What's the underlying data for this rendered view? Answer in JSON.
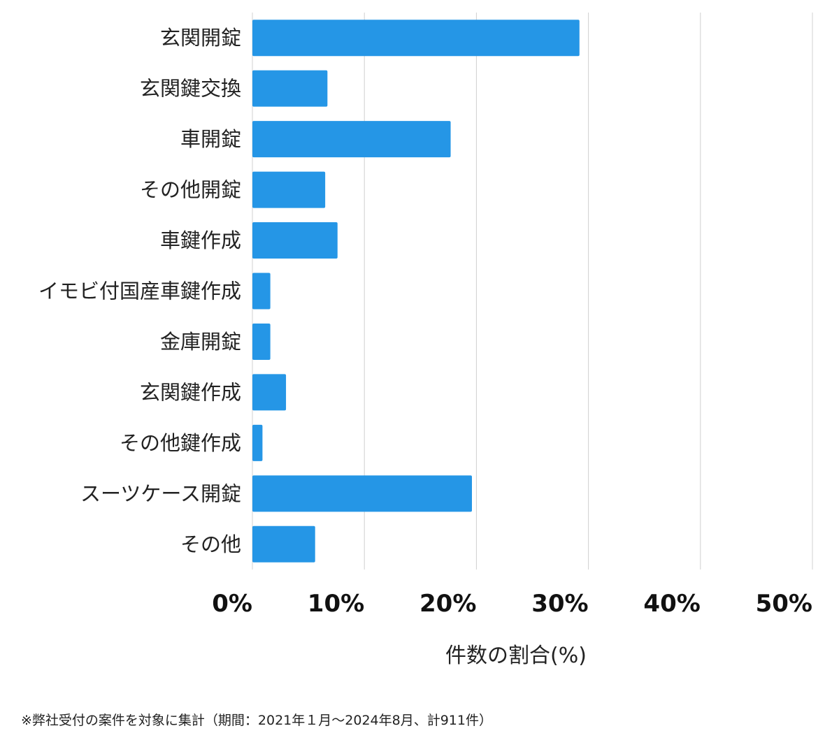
{
  "chart_data": {
    "type": "bar",
    "orientation": "horizontal",
    "categories": [
      "玄関開錠",
      "玄関鍵交換",
      "車開錠",
      "その他開錠",
      "車鍵作成",
      "イモビ付国産車鍵作成",
      "金庫開錠",
      "玄関鍵作成",
      "その他鍵作成",
      "スーツケース開錠",
      "その他"
    ],
    "values": [
      29.2,
      6.7,
      17.7,
      6.5,
      7.6,
      1.6,
      1.6,
      3.0,
      0.9,
      19.6,
      5.6
    ],
    "xlabel": "件数の割合(%)",
    "ylabel": "",
    "xlim": [
      0,
      50
    ],
    "ticks": [
      0,
      10,
      20,
      30,
      40,
      50
    ],
    "tick_labels": [
      "0%",
      "10%",
      "20%",
      "30%",
      "40%",
      "50%"
    ],
    "grid": true,
    "bar_color": "#2596e6",
    "grid_color": "#d0d0d0"
  },
  "footnote": "※弊社受付の案件を対象に集計（期間：2021年１月～2024年8月、計911件）"
}
